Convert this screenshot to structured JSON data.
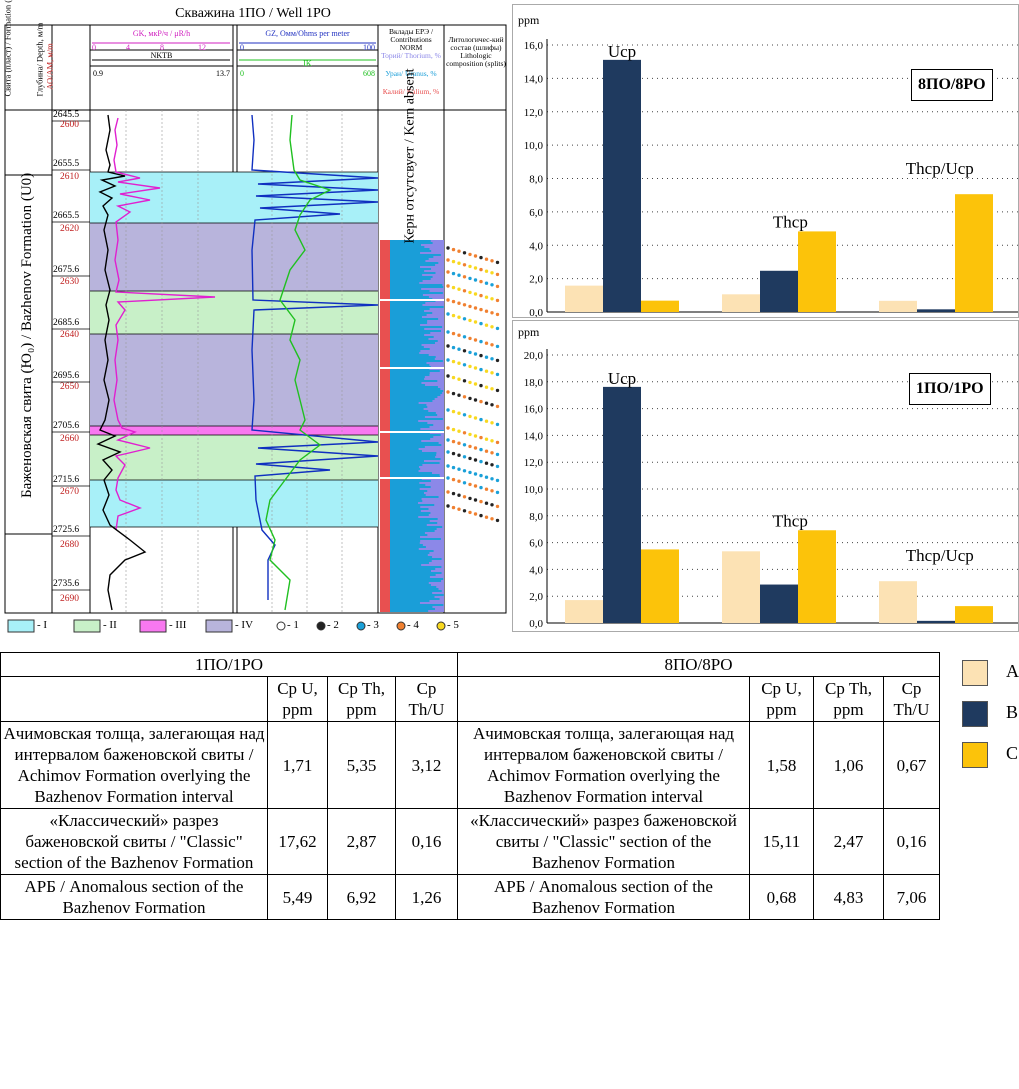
{
  "log": {
    "title": "Скважина 1ПО / Well 1PO",
    "col_formation": "Свита (пласт) / Formation (stratum)",
    "col_depth": "Глубина/ Depth, м/m",
    "col_depth_ao": "АО/AM, м/m",
    "gk_label": "GK, мкР/ч / μR/h",
    "gk_ticks": [
      "0",
      "4",
      "8",
      "12"
    ],
    "nktb_label": "NKTB",
    "nktb_min": "0.9",
    "nktb_max": "13.7",
    "gz_label": "GZ, Омм/Ohms per meter",
    "gz_min": "0",
    "gz_max": "100",
    "ik_label": "IK",
    "ik_min": "0",
    "ik_max": "608",
    "contrib_title": "Вклады ЕРЭ / Contributions NORM",
    "contrib_th": "Торий/ Thorium, %",
    "contrib_u": "Уран/ Uranus, %",
    "contrib_k": "Калий/ Kalium, %",
    "litho_title": "Литологичес-кий состав (шлифы) Lithologic composition (splits)",
    "formation_name": "Баженовская свита (Ю₀) / Bazhenov Formation (U0)",
    "core_absent": "Керн отсутсвует / Kern absent",
    "depth_black": [
      "2645.5",
      "2655.5",
      "2665.5",
      "2675.6",
      "2685.6",
      "2695.6",
      "2705.6",
      "2715.6",
      "2725.6",
      "2735.6"
    ],
    "depth_red": [
      "2600",
      "2610",
      "2620",
      "2630",
      "2640",
      "2650",
      "2660",
      "2670",
      "2680",
      "2690"
    ],
    "legend": [
      {
        "code": "I",
        "color": "#a8f0f8"
      },
      {
        "code": "II",
        "color": "#c8f0c8"
      },
      {
        "code": "III",
        "color": "#f878f0"
      },
      {
        "code": "IV",
        "color": "#b8b4dc"
      }
    ],
    "dot_legend": [
      {
        "code": "1",
        "color": "#ffffff"
      },
      {
        "code": "2",
        "color": "#222222"
      },
      {
        "code": "3",
        "color": "#1aa0d8"
      },
      {
        "code": "4",
        "color": "#f08030"
      },
      {
        "code": "5",
        "color": "#f8d820"
      }
    ]
  },
  "chart_data": [
    {
      "type": "bar",
      "ylabel": "ppm",
      "ylim": [
        0,
        16
      ],
      "yticks": [
        "0,0",
        "2,0",
        "4,0",
        "6,0",
        "8,0",
        "10,0",
        "12,0",
        "14,0",
        "16,0"
      ],
      "badge": "8ПО/8PO",
      "group_labels": [
        "Ucp",
        "Thcp",
        "Thcp/Ucp"
      ],
      "series": [
        {
          "name": "A",
          "color": "#fce2b4",
          "values": [
            1.58,
            1.06,
            0.67
          ]
        },
        {
          "name": "B",
          "color": "#1f3a5f",
          "values": [
            15.11,
            2.47,
            0.16
          ]
        },
        {
          "name": "C",
          "color": "#fcc30a",
          "values": [
            0.68,
            4.83,
            7.06
          ]
        }
      ],
      "grid": true
    },
    {
      "type": "bar",
      "ylabel": "ppm",
      "ylim": [
        0,
        20
      ],
      "yticks": [
        "0,0",
        "2,0",
        "4,0",
        "6,0",
        "8,0",
        "10,0",
        "12,0",
        "14,0",
        "16,0",
        "18,0",
        "20,0"
      ],
      "badge": "1ПО/1PO",
      "group_labels": [
        "Ucp",
        "Thcp",
        "Thcp/Ucp"
      ],
      "series": [
        {
          "name": "A",
          "color": "#fce2b4",
          "values": [
            1.71,
            5.35,
            3.12
          ]
        },
        {
          "name": "B",
          "color": "#1f3a5f",
          "values": [
            17.62,
            2.87,
            0.16
          ]
        },
        {
          "name": "C",
          "color": "#fcc30a",
          "values": [
            5.49,
            6.92,
            1.26
          ]
        }
      ],
      "grid": true
    }
  ],
  "table": {
    "well_left": "1ПО/1PO",
    "well_right": "8ПО/8PO",
    "h_u": "Cp U, ppm",
    "h_th": "Cp Th, ppm",
    "h_ratio": "Cp Th/U",
    "rows": [
      {
        "left_label": "Ачимовская толща, залегающая над интервалом баженовской свиты / Achimov Formation overlying the Bazhenov Formation interval",
        "left_u": "1,71",
        "left_th": "5,35",
        "left_r": "3,12",
        "right_label": "Ачимовская толща, залегающая над интервалом баженовской свиты / Achimov Formation overlying the Bazhenov Formation interval",
        "right_u": "1,58",
        "right_th": "1,06",
        "right_r": "0,67"
      },
      {
        "left_label": "«Классический» разрез баженовской свиты / \"Classic\" section of the Bazhenov Formation",
        "left_u": "17,62",
        "left_th": "2,87",
        "left_r": "0,16",
        "right_label": "«Классический» разрез баженовской свиты / \"Classic\" section of the Bazhenov Formation",
        "right_u": "15,11",
        "right_th": "2,47",
        "right_r": "0,16"
      },
      {
        "left_label": "АРБ / Anomalous section of the Bazhenov Formation",
        "left_u": "5,49",
        "left_th": "6,92",
        "left_r": "1,26",
        "right_label": "АРБ / Anomalous section of the Bazhenov Formation",
        "right_u": "0,68",
        "right_th": "4,83",
        "right_r": "7,06"
      }
    ]
  },
  "legend": [
    {
      "letter": "A",
      "color": "#fce2b4"
    },
    {
      "letter": "B",
      "color": "#1f3a5f"
    },
    {
      "letter": "C",
      "color": "#fcc30a"
    }
  ]
}
